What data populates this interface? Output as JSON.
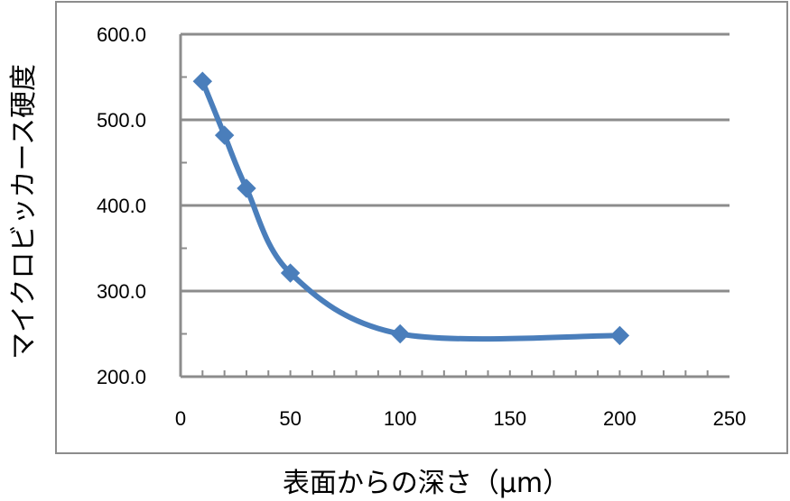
{
  "chart_data": {
    "type": "line",
    "title": "",
    "xlabel": "表面からの深さ（μm）",
    "ylabel": "マイクロビッカース硬度",
    "xlim": [
      0,
      250
    ],
    "ylim": [
      200,
      600
    ],
    "x_ticks": [
      0,
      50,
      100,
      150,
      200,
      250
    ],
    "x_tick_labels": [
      "0",
      "50",
      "100",
      "150",
      "200",
      "250"
    ],
    "y_ticks": [
      200,
      300,
      400,
      500,
      600
    ],
    "y_tick_labels": [
      "200.0",
      "300.0",
      "400.0",
      "500.0",
      "600.0"
    ],
    "grid": true,
    "legend": "none",
    "series": [
      {
        "color": "#4a7ebb",
        "marker": "diamond",
        "smooth": true,
        "x": [
          10,
          20,
          30,
          50,
          100,
          200
        ],
        "y": [
          545,
          482,
          420,
          321,
          250,
          248
        ]
      }
    ]
  }
}
